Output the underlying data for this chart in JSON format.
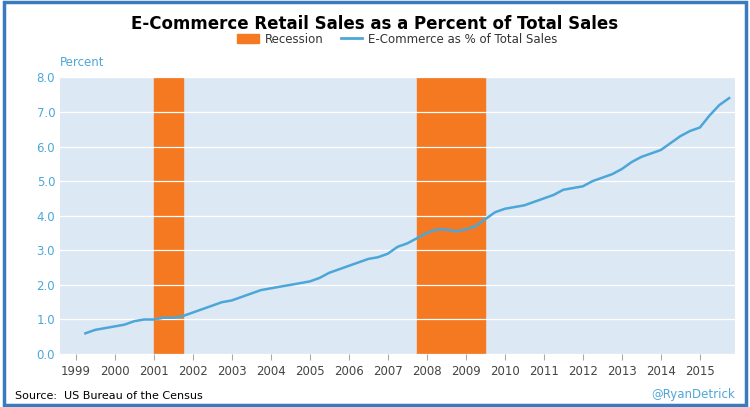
{
  "title": "E-Commerce Retail Sales as a Percent of Total Sales",
  "ylabel": "Percent",
  "source_text": "Source:  US Bureau of the Census",
  "watermark": "@RyanDetrick",
  "background_color": "#dce9f5",
  "outer_background": "#ffffff",
  "line_color": "#4da6d8",
  "recession_color": "#f47920",
  "border_color": "#3a7abf",
  "recession1": [
    2001.0,
    2001.75
  ],
  "recession2": [
    2007.75,
    2009.5
  ],
  "ylim": [
    0.0,
    8.0
  ],
  "yticks": [
    0.0,
    1.0,
    2.0,
    3.0,
    4.0,
    5.0,
    6.0,
    7.0,
    8.0
  ],
  "xticks": [
    1999,
    2000,
    2001,
    2002,
    2003,
    2004,
    2005,
    2006,
    2007,
    2008,
    2009,
    2010,
    2011,
    2012,
    2013,
    2014,
    2015
  ],
  "xlim": [
    1998.6,
    2015.9
  ],
  "data": {
    "1999.25": 0.6,
    "1999.5": 0.7,
    "1999.75": 0.75,
    "2000.0": 0.8,
    "2000.25": 0.85,
    "2000.5": 0.95,
    "2000.75": 1.0,
    "2001.0": 1.0,
    "2001.25": 1.05,
    "2001.5": 1.05,
    "2001.75": 1.1,
    "2002.0": 1.2,
    "2002.25": 1.3,
    "2002.5": 1.4,
    "2002.75": 1.5,
    "2003.0": 1.55,
    "2003.25": 1.65,
    "2003.5": 1.75,
    "2003.75": 1.85,
    "2004.0": 1.9,
    "2004.25": 1.95,
    "2004.5": 2.0,
    "2004.75": 2.05,
    "2005.0": 2.1,
    "2005.25": 2.2,
    "2005.5": 2.35,
    "2005.75": 2.45,
    "2006.0": 2.55,
    "2006.25": 2.65,
    "2006.5": 2.75,
    "2006.75": 2.8,
    "2007.0": 2.9,
    "2007.25": 3.1,
    "2007.5": 3.2,
    "2007.75": 3.35,
    "2008.0": 3.5,
    "2008.25": 3.6,
    "2008.5": 3.6,
    "2008.75": 3.55,
    "2009.0": 3.6,
    "2009.25": 3.7,
    "2009.5": 3.9,
    "2009.75": 4.1,
    "2010.0": 4.2,
    "2010.25": 4.25,
    "2010.5": 4.3,
    "2010.75": 4.4,
    "2011.0": 4.5,
    "2011.25": 4.6,
    "2011.5": 4.75,
    "2011.75": 4.8,
    "2012.0": 4.85,
    "2012.25": 5.0,
    "2012.5": 5.1,
    "2012.75": 5.2,
    "2013.0": 5.35,
    "2013.25": 5.55,
    "2013.5": 5.7,
    "2013.75": 5.8,
    "2014.0": 5.9,
    "2014.25": 6.1,
    "2014.5": 6.3,
    "2014.75": 6.45,
    "2015.0": 6.55,
    "2015.25": 6.9,
    "2015.5": 7.2,
    "2015.75": 7.4
  }
}
